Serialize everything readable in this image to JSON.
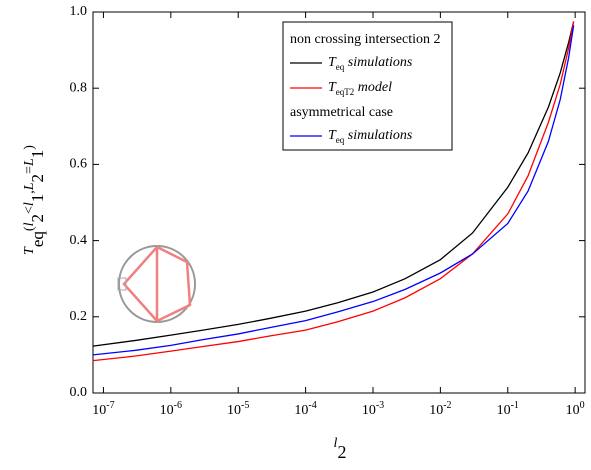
{
  "chart_data": {
    "type": "line",
    "x_label": [
      {
        "text": "l",
        "style": "italic"
      },
      {
        "text": "2",
        "style": "sub"
      }
    ],
    "y_label": [
      {
        "text": "T",
        "style": "italic"
      },
      {
        "text": "eq",
        "style": "sub"
      },
      {
        "text": "(",
        "style": "plain"
      },
      {
        "text": "l",
        "style": "italic"
      },
      {
        "text": "2",
        "style": "sub"
      },
      {
        "text": "<",
        "style": "plain"
      },
      {
        "text": "l",
        "style": "italic"
      },
      {
        "text": "1",
        "style": "sub"
      },
      {
        "text": ",",
        "style": "plain"
      },
      {
        "text": "L",
        "style": "italic"
      },
      {
        "text": "2",
        "style": "sub"
      },
      {
        "text": "=",
        "style": "plain"
      },
      {
        "text": "L",
        "style": "italic"
      },
      {
        "text": "1",
        "style": "sub"
      },
      {
        "text": ")",
        "style": "plain"
      }
    ],
    "x_scale": "log",
    "xlim": [
      7e-08,
      1.4
    ],
    "xticks": [
      {
        "value": 1e-07,
        "label": "10",
        "exponent": "-7"
      },
      {
        "value": 1e-06,
        "label": "10",
        "exponent": "-6"
      },
      {
        "value": 1e-05,
        "label": "10",
        "exponent": "-5"
      },
      {
        "value": 0.0001,
        "label": "10",
        "exponent": "-4"
      },
      {
        "value": 0.001,
        "label": "10",
        "exponent": "-3"
      },
      {
        "value": 0.01,
        "label": "10",
        "exponent": "-2"
      },
      {
        "value": 0.1,
        "label": "10",
        "exponent": "-1"
      },
      {
        "value": 1,
        "label": "10",
        "exponent": "0"
      }
    ],
    "ylim": [
      0,
      1
    ],
    "yticks": [
      {
        "value": 0,
        "label": "0.0"
      },
      {
        "value": 0.2,
        "label": "0.2"
      },
      {
        "value": 0.4,
        "label": "0.4"
      },
      {
        "value": 0.6,
        "label": "0.6"
      },
      {
        "value": 0.8,
        "label": "0.8"
      },
      {
        "value": 1,
        "label": "1.0"
      }
    ],
    "x": [
      7e-08,
      3e-07,
      1e-06,
      3e-06,
      1e-05,
      3e-05,
      0.0001,
      0.0003,
      0.001,
      0.003,
      0.01,
      0.03,
      0.1,
      0.2,
      0.4,
      0.6,
      0.8,
      0.95
    ],
    "legend_groups": [
      "non crossing intersection 2",
      "asymmetrical case"
    ],
    "series": [
      {
        "group": 0,
        "color": "#000000",
        "name": [
          {
            "text": "T",
            "style": "italic"
          },
          {
            "text": "eq",
            "style": "sub"
          },
          {
            "text": " simulations",
            "style": "italic"
          }
        ],
        "values": [
          0.123,
          0.138,
          0.152,
          0.165,
          0.18,
          0.196,
          0.215,
          0.237,
          0.265,
          0.3,
          0.35,
          0.42,
          0.54,
          0.63,
          0.75,
          0.84,
          0.92,
          0.975
        ]
      },
      {
        "group": 0,
        "color": "#ff0000",
        "name": [
          {
            "text": "T",
            "style": "italic"
          },
          {
            "text": "eqT2",
            "style": "sub"
          },
          {
            "text": " model",
            "style": "italic"
          }
        ],
        "values": [
          0.085,
          0.097,
          0.11,
          0.122,
          0.135,
          0.15,
          0.165,
          0.187,
          0.215,
          0.25,
          0.3,
          0.365,
          0.47,
          0.57,
          0.71,
          0.81,
          0.905,
          0.975
        ]
      },
      {
        "group": 1,
        "color": "#0000ff",
        "name": [
          {
            "text": "T",
            "style": "italic"
          },
          {
            "text": "eq",
            "style": "sub"
          },
          {
            "text": " simulations",
            "style": "italic"
          }
        ],
        "values": [
          0.1,
          0.112,
          0.125,
          0.14,
          0.155,
          0.172,
          0.19,
          0.213,
          0.24,
          0.272,
          0.315,
          0.365,
          0.445,
          0.53,
          0.66,
          0.77,
          0.88,
          0.965
        ]
      }
    ]
  }
}
